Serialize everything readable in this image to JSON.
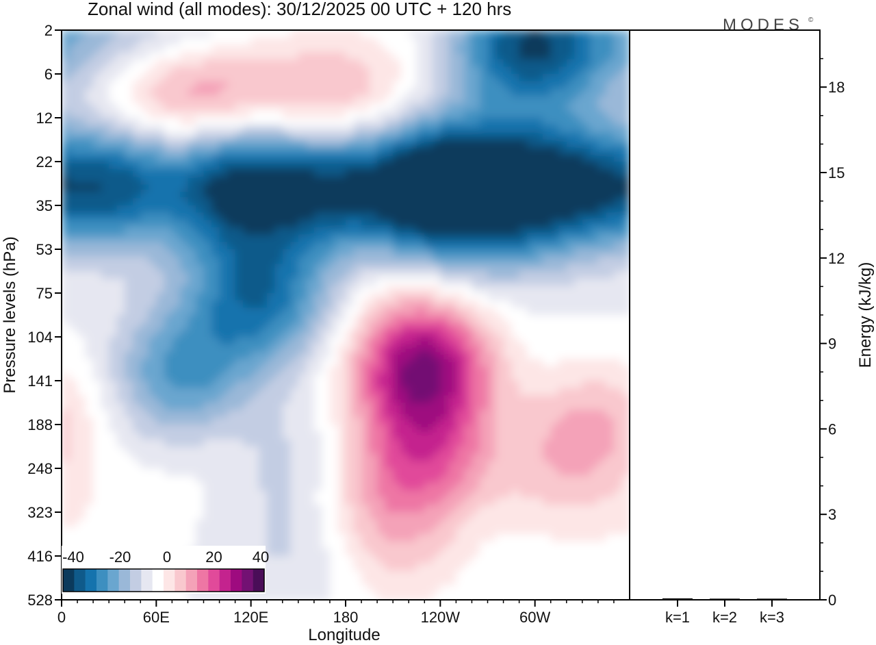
{
  "chart_data": {
    "type": "heatmap",
    "title": "Zonal wind (all modes):  30/12/2025  00 UTC  + 120 hrs",
    "logo": "MODES",
    "logo_mark": "©",
    "xlabel": "Longitude",
    "ylabel": "Pressure levels (hPa)",
    "x_ticks": [
      "0",
      "60E",
      "120E",
      "180",
      "120W",
      "60W"
    ],
    "x_tick_degrees": [
      0,
      60,
      120,
      180,
      240,
      300
    ],
    "x_range": [
      0,
      360
    ],
    "y_ticks": [
      "2",
      "6",
      "12",
      "22",
      "35",
      "53",
      "75",
      "104",
      "141",
      "188",
      "248",
      "323",
      "416",
      "528"
    ],
    "colorbar": {
      "tick_labels": [
        "-40",
        "-20",
        "0",
        "20",
        "40"
      ],
      "levels": [
        -40,
        -35,
        -30,
        -25,
        -20,
        -15,
        -10,
        -5,
        0,
        5,
        10,
        15,
        20,
        25,
        30,
        35,
        40,
        45
      ],
      "colors": [
        "#0b3a5c",
        "#0f5a8a",
        "#1573ad",
        "#3d8fc0",
        "#6aa6cf",
        "#9ab8d8",
        "#c3cde3",
        "#e6e7f1",
        "#ffffff",
        "#fde6e6",
        "#f9c8ce",
        "#f4a2b8",
        "#ee76a4",
        "#e14a9a",
        "#c4238e",
        "#9e0b7f",
        "#731173",
        "#4a0d58"
      ]
    },
    "field_blobs": [
      {
        "lon": 40,
        "p": 7,
        "v": 8
      },
      {
        "lon": 80,
        "p": 8,
        "v": 15
      },
      {
        "lon": 110,
        "p": 8,
        "v": 9
      },
      {
        "lon": 160,
        "p": 9,
        "v": 9
      },
      {
        "lon": 200,
        "p": 7,
        "v": 6
      },
      {
        "lon": 180,
        "p": 14,
        "v": 6
      },
      {
        "lon": 285,
        "p": 3,
        "v": -22
      },
      {
        "lon": 315,
        "p": 3,
        "v": -18
      },
      {
        "lon": 20,
        "p": 2.5,
        "v": -14
      },
      {
        "lon": 80,
        "p": 2.5,
        "v": -10
      },
      {
        "lon": 30,
        "p": 28,
        "v": -31
      },
      {
        "lon": 110,
        "p": 27,
        "v": -34
      },
      {
        "lon": 170,
        "p": 28,
        "v": -30
      },
      {
        "lon": 230,
        "p": 27,
        "v": -31
      },
      {
        "lon": 270,
        "p": 27,
        "v": -27
      },
      {
        "lon": 320,
        "p": 29,
        "v": -33
      },
      {
        "lon": 120,
        "p": 60,
        "v": -14
      },
      {
        "lon": 130,
        "p": 85,
        "v": -18
      },
      {
        "lon": 80,
        "p": 120,
        "v": -14
      },
      {
        "lon": 70,
        "p": 160,
        "v": -11
      },
      {
        "lon": 145,
        "p": 240,
        "v": -7
      },
      {
        "lon": 150,
        "p": 400,
        "v": -6
      },
      {
        "lon": 240,
        "p": 40,
        "v": -9
      },
      {
        "lon": 270,
        "p": 50,
        "v": -7
      },
      {
        "lon": 270,
        "p": 150,
        "v": -3
      },
      {
        "lon": 230,
        "p": 140,
        "v": 32
      },
      {
        "lon": 232,
        "p": 230,
        "v": 20
      },
      {
        "lon": 228,
        "p": 100,
        "v": 15
      },
      {
        "lon": 200,
        "p": 300,
        "v": 10
      },
      {
        "lon": 215,
        "p": 420,
        "v": 8
      },
      {
        "lon": 330,
        "p": 190,
        "v": 13
      },
      {
        "lon": 320,
        "p": 280,
        "v": 8
      },
      {
        "lon": 10,
        "p": 160,
        "v": 4
      },
      {
        "lon": 90,
        "p": 220,
        "v": 4
      },
      {
        "lon": 25,
        "p": 360,
        "v": 3
      }
    ],
    "energy_panel": {
      "ylabel": "Energy (kJ/kg)",
      "ylim": [
        0,
        20
      ],
      "y_ticks": [
        0,
        3,
        6,
        9,
        12,
        15,
        18
      ],
      "categories": [
        "k=1",
        "k=2",
        "k=3"
      ],
      "values": [
        0.05,
        0.04,
        0.04
      ]
    }
  }
}
